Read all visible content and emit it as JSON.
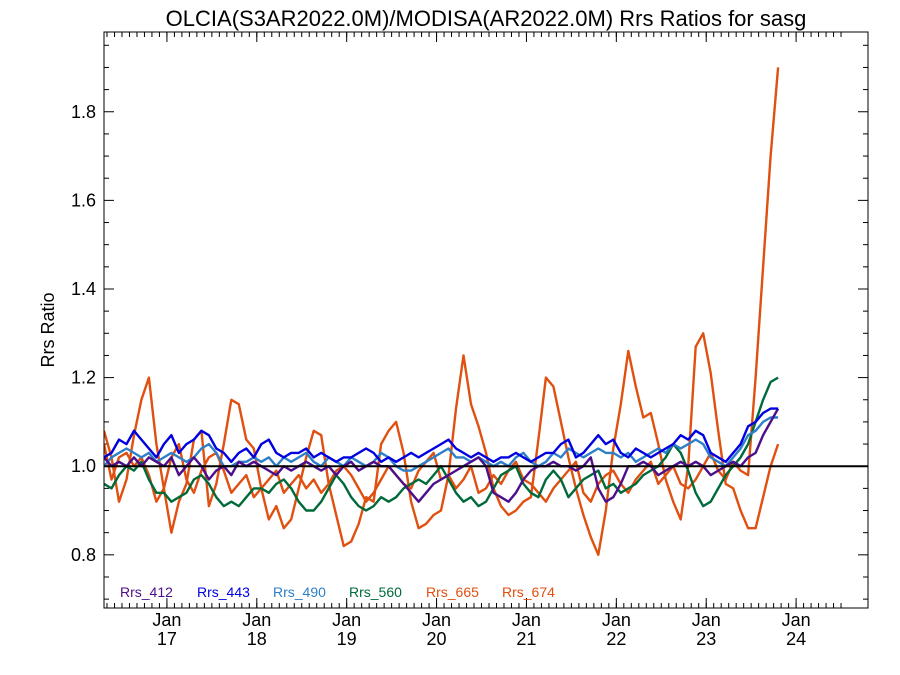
{
  "chart_data": {
    "type": "line",
    "title": "OLCIA(S3AR2022.0M)/MODISA(AR2022.0M)  Rrs Ratios for sasg",
    "xlabel": "",
    "ylabel": "Rrs Ratio",
    "x_start": 2016.3,
    "x_step": 0.08333,
    "xlim": [
      2016.3,
      2024.8
    ],
    "ylim": [
      0.68,
      1.98
    ],
    "yticks": [
      0.8,
      1.0,
      1.2,
      1.4,
      1.6,
      1.8
    ],
    "ytick_labels": [
      "0.8",
      "1.0",
      "1.2",
      "1.4",
      "1.6",
      "1.8"
    ],
    "xticks": [
      2017,
      2018,
      2019,
      2020,
      2021,
      2022,
      2023,
      2024
    ],
    "xtick_labels": [
      {
        "month": "Jan",
        "year": "17"
      },
      {
        "month": "Jan",
        "year": "18"
      },
      {
        "month": "Jan",
        "year": "19"
      },
      {
        "month": "Jan",
        "year": "20"
      },
      {
        "month": "Jan",
        "year": "21"
      },
      {
        "month": "Jan",
        "year": "22"
      },
      {
        "month": "Jan",
        "year": "23"
      },
      {
        "month": "Jan",
        "year": "24"
      }
    ],
    "reference_line": 1.0,
    "grid": false,
    "legend_position": "bottom-left",
    "series": [
      {
        "name": "Rrs_412",
        "color": "#4b0f8c",
        "values": [
          1.02,
          1.0,
          1.01,
          1.0,
          1.02,
          1.0,
          1.02,
          1.01,
          1.0,
          1.02,
          0.98,
          1.0,
          1.02,
          1.0,
          0.97,
          0.99,
          1.0,
          0.98,
          1.01,
          1.0,
          1.01,
          1.0,
          0.99,
          0.98,
          1.0,
          0.99,
          1.0,
          1.01,
          1.0,
          0.99,
          1.0,
          0.98,
          1.0,
          1.01,
          0.99,
          1.0,
          1.01,
          1.0,
          1.0,
          0.98,
          0.96,
          0.94,
          0.92,
          0.94,
          0.96,
          0.97,
          0.98,
          0.99,
          1.0,
          1.01,
          1.02,
          1.0,
          0.94,
          0.93,
          0.92,
          0.94,
          0.97,
          0.99,
          1.0,
          1.0,
          1.01,
          1.0,
          1.0,
          0.99,
          1.0,
          1.02,
          0.95,
          0.92,
          0.93,
          0.96,
          1.0,
          1.0,
          1.01,
          1.0,
          0.98,
          0.99,
          1.0,
          1.01,
          1.0,
          1.01,
          1.0,
          0.98,
          0.99,
          1.0,
          1.01,
          1.0,
          1.02,
          1.03,
          1.07,
          1.1,
          1.13
        ]
      },
      {
        "name": "Rrs_443",
        "color": "#0000e0",
        "values": [
          1.02,
          1.03,
          1.06,
          1.05,
          1.08,
          1.06,
          1.04,
          1.02,
          1.05,
          1.07,
          1.03,
          1.05,
          1.06,
          1.08,
          1.07,
          1.04,
          1.03,
          1.01,
          1.03,
          1.04,
          1.02,
          1.05,
          1.06,
          1.03,
          1.02,
          1.03,
          1.03,
          1.04,
          1.02,
          1.03,
          1.02,
          1.01,
          1.02,
          1.02,
          1.03,
          1.04,
          1.03,
          1.01,
          1.02,
          1.01,
          1.02,
          1.03,
          1.02,
          1.03,
          1.04,
          1.05,
          1.06,
          1.04,
          1.03,
          1.02,
          1.03,
          1.02,
          1.01,
          1.02,
          1.02,
          1.03,
          1.02,
          1.01,
          1.02,
          1.03,
          1.03,
          1.05,
          1.06,
          1.02,
          1.03,
          1.05,
          1.07,
          1.05,
          1.06,
          1.03,
          1.02,
          1.04,
          1.03,
          1.02,
          1.03,
          1.04,
          1.05,
          1.07,
          1.06,
          1.08,
          1.07,
          1.03,
          1.02,
          1.01,
          1.03,
          1.05,
          1.09,
          1.1,
          1.12,
          1.13,
          1.13
        ]
      },
      {
        "name": "Rrs_490",
        "color": "#2d7fc8",
        "values": [
          1.0,
          1.02,
          1.03,
          1.04,
          1.03,
          1.02,
          1.03,
          1.01,
          1.02,
          1.03,
          1.02,
          1.01,
          1.02,
          1.04,
          1.05,
          1.03,
          1.0,
          1.0,
          1.01,
          1.01,
          1.02,
          1.01,
          1.02,
          1.0,
          1.02,
          1.01,
          1.02,
          1.03,
          1.01,
          1.0,
          1.02,
          1.01,
          1.0,
          1.02,
          1.01,
          1.0,
          1.01,
          1.03,
          1.02,
          1.0,
          0.99,
          0.99,
          1.0,
          1.01,
          1.02,
          1.03,
          1.04,
          1.02,
          1.02,
          1.01,
          1.02,
          1.01,
          1.0,
          1.01,
          1.0,
          1.02,
          1.03,
          1.01,
          1.0,
          1.01,
          1.03,
          1.02,
          1.04,
          1.03,
          1.02,
          1.03,
          1.04,
          1.03,
          1.03,
          1.02,
          1.03,
          1.01,
          1.02,
          1.03,
          1.04,
          1.03,
          1.05,
          1.04,
          1.05,
          1.06,
          1.05,
          1.02,
          1.01,
          1.0,
          1.02,
          1.04,
          1.07,
          1.08,
          1.1,
          1.11,
          1.11
        ]
      },
      {
        "name": "Rrs_560",
        "color": "#006a3a",
        "values": [
          0.96,
          0.95,
          0.98,
          1.0,
          0.99,
          1.01,
          0.97,
          0.94,
          0.94,
          0.92,
          0.93,
          0.94,
          0.97,
          0.98,
          0.96,
          0.93,
          0.91,
          0.92,
          0.91,
          0.93,
          0.95,
          0.95,
          0.94,
          0.96,
          0.97,
          0.95,
          0.92,
          0.9,
          0.9,
          0.92,
          0.95,
          0.98,
          0.96,
          0.93,
          0.91,
          0.9,
          0.91,
          0.93,
          0.92,
          0.93,
          0.95,
          0.96,
          0.97,
          0.96,
          0.98,
          1.0,
          0.97,
          0.94,
          0.92,
          0.93,
          0.91,
          0.92,
          0.95,
          0.98,
          0.99,
          1.0,
          0.96,
          0.94,
          0.93,
          0.97,
          0.99,
          0.97,
          0.93,
          0.95,
          0.97,
          0.98,
          0.99,
          0.95,
          0.96,
          0.94,
          0.95,
          0.96,
          0.98,
          0.99,
          1.0,
          1.02,
          1.05,
          1.03,
          0.99,
          0.94,
          0.91,
          0.92,
          0.95,
          0.98,
          1.0,
          1.02,
          1.05,
          1.1,
          1.15,
          1.19,
          1.2
        ]
      },
      {
        "name": "Rrs_665",
        "color": "#e05010",
        "values": [
          1.05,
          0.97,
          1.02,
          1.03,
          1.0,
          1.02,
          0.98,
          0.92,
          0.95,
          1.02,
          1.05,
          0.97,
          0.94,
          0.99,
          1.02,
          1.03,
          0.99,
          0.94,
          0.96,
          0.98,
          0.93,
          0.95,
          0.97,
          0.99,
          0.94,
          0.96,
          0.98,
          0.95,
          0.97,
          0.94,
          0.96,
          0.99,
          1.0,
          0.98,
          0.95,
          0.92,
          0.94,
          0.97,
          1.0,
          0.98,
          0.96,
          0.95,
          0.99,
          1.01,
          1.03,
          0.97,
          0.98,
          0.95,
          0.97,
          1.0,
          0.94,
          0.95,
          0.98,
          0.96,
          0.99,
          1.01,
          0.97,
          0.96,
          0.94,
          0.92,
          0.95,
          0.97,
          0.99,
          1.01,
          0.94,
          0.92,
          0.96,
          0.98,
          0.99,
          0.96,
          0.94,
          0.97,
          0.99,
          1.01,
          0.96,
          0.98,
          1.0,
          0.96,
          0.95,
          0.97,
          1.0,
          1.03,
          0.99,
          0.97,
          1.01,
          0.99,
          0.98,
          1.2,
          1.45,
          1.7,
          1.9
        ]
      },
      {
        "name": "Rrs_674",
        "color": "#e05010",
        "values": [
          1.08,
          1.02,
          0.92,
          0.97,
          1.07,
          1.15,
          1.2,
          1.05,
          0.95,
          0.85,
          0.92,
          0.96,
          1.06,
          1.08,
          0.91,
          0.96,
          1.05,
          1.15,
          1.14,
          1.06,
          1.04,
          0.95,
          0.88,
          0.91,
          0.86,
          0.88,
          0.95,
          1.02,
          1.08,
          1.07,
          0.96,
          0.89,
          0.82,
          0.83,
          0.87,
          0.93,
          0.92,
          1.05,
          1.08,
          1.1,
          1.03,
          0.92,
          0.86,
          0.87,
          0.89,
          0.9,
          0.98,
          1.13,
          1.25,
          1.14,
          1.09,
          1.03,
          0.95,
          0.91,
          0.89,
          0.9,
          0.92,
          0.93,
          1.06,
          1.2,
          1.18,
          1.1,
          1.02,
          0.95,
          0.89,
          0.84,
          0.8,
          0.9,
          1.04,
          1.14,
          1.26,
          1.18,
          1.11,
          1.12,
          1.05,
          0.97,
          0.92,
          0.88,
          1.0,
          1.27,
          1.3,
          1.21,
          1.08,
          0.96,
          0.95,
          0.9,
          0.86,
          0.86,
          0.93,
          1.0,
          1.05
        ]
      }
    ]
  }
}
